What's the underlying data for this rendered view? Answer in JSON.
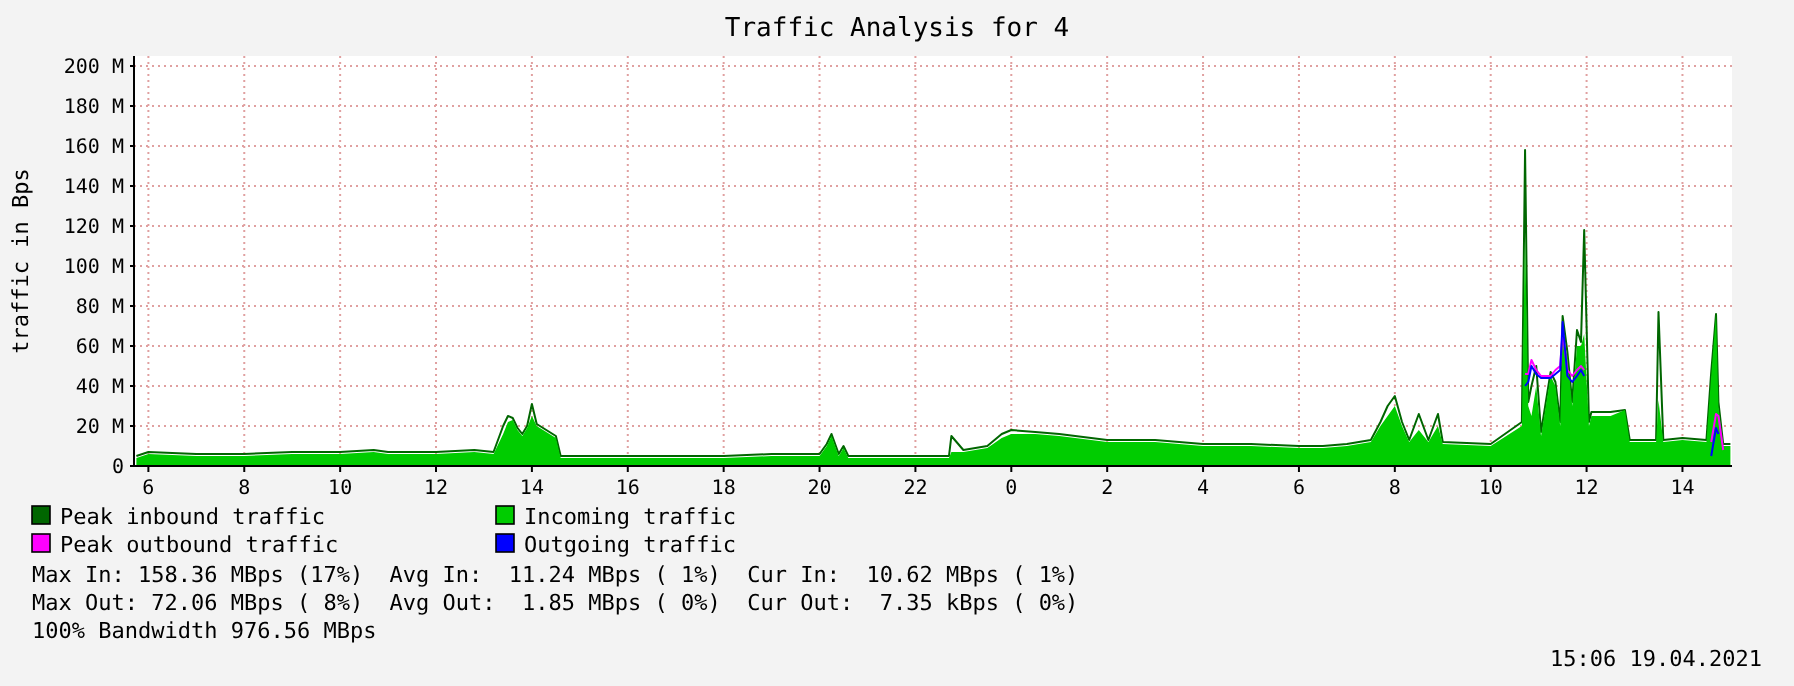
{
  "chart_data": {
    "type": "line",
    "title": "Traffic Analysis for 4",
    "ylabel": "traffic in Bps",
    "x": [
      "2021-04-18T05:45",
      "2021-04-18T06:00",
      "2021-04-18T07:00",
      "2021-04-18T08:00",
      "2021-04-18T09:00",
      "2021-04-18T10:00",
      "2021-04-18T10:42",
      "2021-04-18T11:00",
      "2021-04-18T12:00",
      "2021-04-18T12:48",
      "2021-04-18T13:12",
      "2021-04-18T13:24",
      "2021-04-18T13:30",
      "2021-04-18T13:36",
      "2021-04-18T13:42",
      "2021-04-18T13:48",
      "2021-04-18T13:54",
      "2021-04-18T14:00",
      "2021-04-18T14:06",
      "2021-04-18T14:18",
      "2021-04-18T14:30",
      "2021-04-18T14:36",
      "2021-04-18T15:00",
      "2021-04-18T16:00",
      "2021-04-18T17:00",
      "2021-04-18T18:00",
      "2021-04-18T19:00",
      "2021-04-18T20:00",
      "2021-04-18T20:09",
      "2021-04-18T20:15",
      "2021-04-18T20:24",
      "2021-04-18T20:30",
      "2021-04-18T20:36",
      "2021-04-18T21:00",
      "2021-04-18T22:00",
      "2021-04-18T22:42",
      "2021-04-18T22:45",
      "2021-04-18T23:00",
      "2021-04-18T23:30",
      "2021-04-18T23:48",
      "2021-04-19T00:00",
      "2021-04-19T00:30",
      "2021-04-19T01:00",
      "2021-04-19T02:00",
      "2021-04-19T03:00",
      "2021-04-19T04:00",
      "2021-04-19T05:00",
      "2021-04-19T06:00",
      "2021-04-19T06:30",
      "2021-04-19T07:00",
      "2021-04-19T07:30",
      "2021-04-19T07:42",
      "2021-04-19T07:51",
      "2021-04-19T08:00",
      "2021-04-19T08:09",
      "2021-04-19T08:18",
      "2021-04-19T08:30",
      "2021-04-19T08:42",
      "2021-04-19T08:54",
      "2021-04-19T09:00",
      "2021-04-19T10:00",
      "2021-04-19T10:39",
      "2021-04-19T10:43",
      "2021-04-19T10:47",
      "2021-04-19T10:51",
      "2021-04-19T10:57",
      "2021-04-19T11:03",
      "2021-04-19T11:09",
      "2021-04-19T11:15",
      "2021-04-19T11:21",
      "2021-04-19T11:27",
      "2021-04-19T11:30",
      "2021-04-19T11:36",
      "2021-04-19T11:42",
      "2021-04-19T11:48",
      "2021-04-19T11:53",
      "2021-04-19T11:57",
      "2021-04-19T12:03",
      "2021-04-19T12:06",
      "2021-04-19T12:30",
      "2021-04-19T12:48",
      "2021-04-19T12:54",
      "2021-04-19T13:00",
      "2021-04-19T13:27",
      "2021-04-19T13:30",
      "2021-04-19T13:36",
      "2021-04-19T14:00",
      "2021-04-19T14:30",
      "2021-04-19T14:36",
      "2021-04-19T14:42",
      "2021-04-19T14:45",
      "2021-04-19T14:51",
      "2021-04-19T15:00"
    ],
    "series": [
      {
        "name": "Peak inbound traffic",
        "type": "line",
        "color": "#006600",
        "values": [
          5,
          7,
          6,
          6,
          7,
          7,
          8,
          7,
          7,
          8,
          7,
          20,
          25,
          24,
          19,
          16,
          20,
          31,
          21,
          18,
          15,
          5,
          5,
          5,
          5,
          5,
          6,
          6,
          11,
          16,
          6,
          10,
          5,
          5,
          5,
          5,
          15,
          8,
          10,
          16,
          18,
          17,
          16,
          13,
          13,
          11,
          11,
          10,
          10,
          11,
          13,
          22,
          30,
          35,
          22,
          13,
          26,
          13,
          26,
          12,
          11,
          22,
          158,
          32,
          40,
          50,
          17,
          32,
          47,
          42,
          22,
          75,
          57,
          32,
          68,
          62,
          118,
          22,
          27,
          27,
          28,
          13,
          13,
          13,
          77,
          13,
          14,
          13,
          47,
          76,
          32,
          11,
          11
        ]
      },
      {
        "name": "Incoming traffic",
        "type": "area",
        "color": "#00cc00",
        "values": [
          4,
          6,
          5,
          5,
          6,
          6,
          7,
          6,
          6,
          7,
          6,
          16,
          22,
          23,
          18,
          15,
          19,
          25,
          20,
          17,
          14,
          4,
          4,
          4,
          4,
          4,
          5,
          5,
          10,
          15,
          5,
          9,
          4,
          4,
          4,
          4,
          7,
          7,
          9,
          14,
          16,
          16,
          15,
          12,
          12,
          10,
          10,
          9,
          9,
          10,
          12,
          20,
          25,
          30,
          20,
          12,
          18,
          12,
          20,
          11,
          10,
          20,
          115,
          30,
          25,
          40,
          15,
          30,
          45,
          40,
          20,
          65,
          55,
          30,
          60,
          60,
          66,
          20,
          25,
          25,
          28,
          12,
          12,
          12,
          33,
          12,
          13,
          12,
          45,
          76,
          30,
          10,
          10
        ]
      },
      {
        "name": "Peak outbound traffic",
        "type": "line",
        "color": "#ff00ff",
        "values": [
          null,
          null,
          null,
          null,
          null,
          null,
          null,
          null,
          null,
          null,
          null,
          null,
          null,
          null,
          null,
          null,
          null,
          null,
          null,
          null,
          null,
          null,
          null,
          null,
          null,
          null,
          null,
          null,
          null,
          null,
          null,
          null,
          null,
          null,
          null,
          null,
          null,
          null,
          null,
          null,
          null,
          null,
          null,
          null,
          null,
          null,
          null,
          null,
          null,
          null,
          null,
          null,
          null,
          null,
          null,
          null,
          null,
          null,
          null,
          null,
          null,
          null,
          46,
          46,
          53,
          48,
          45,
          45,
          45,
          48,
          50,
          67,
          48,
          45,
          48,
          50,
          48,
          null,
          null,
          null,
          null,
          null,
          null,
          null,
          null,
          null,
          null,
          null,
          12,
          26,
          25,
          8,
          null
        ]
      },
      {
        "name": "Outgoing traffic",
        "type": "line",
        "color": "#0000ff",
        "values": [
          null,
          null,
          null,
          null,
          null,
          null,
          null,
          null,
          null,
          null,
          null,
          null,
          null,
          null,
          null,
          null,
          null,
          null,
          null,
          null,
          null,
          null,
          null,
          null,
          null,
          null,
          null,
          null,
          null,
          null,
          null,
          null,
          null,
          null,
          null,
          null,
          null,
          null,
          null,
          null,
          null,
          null,
          null,
          null,
          null,
          null,
          null,
          null,
          null,
          null,
          null,
          null,
          null,
          null,
          null,
          null,
          null,
          null,
          null,
          null,
          null,
          null,
          40,
          42,
          50,
          46,
          44,
          44,
          44,
          46,
          48,
          72,
          45,
          42,
          45,
          48,
          45,
          null,
          null,
          null,
          null,
          null,
          null,
          null,
          null,
          null,
          null,
          null,
          5,
          19,
          16,
          null,
          null
        ]
      }
    ],
    "xlim": [
      "2021-04-18T05:42",
      "2021-04-19T15:02"
    ],
    "xticks": [
      {
        "value": "2021-04-18T06:00",
        "label": "6"
      },
      {
        "value": "2021-04-18T08:00",
        "label": "8"
      },
      {
        "value": "2021-04-18T10:00",
        "label": "10"
      },
      {
        "value": "2021-04-18T12:00",
        "label": "12"
      },
      {
        "value": "2021-04-18T14:00",
        "label": "14"
      },
      {
        "value": "2021-04-18T16:00",
        "label": "16"
      },
      {
        "value": "2021-04-18T18:00",
        "label": "18"
      },
      {
        "value": "2021-04-18T20:00",
        "label": "20"
      },
      {
        "value": "2021-04-18T22:00",
        "label": "22"
      },
      {
        "value": "2021-04-19T00:00",
        "label": "0"
      },
      {
        "value": "2021-04-19T02:00",
        "label": "2"
      },
      {
        "value": "2021-04-19T04:00",
        "label": "4"
      },
      {
        "value": "2021-04-19T06:00",
        "label": "6"
      },
      {
        "value": "2021-04-19T08:00",
        "label": "8"
      },
      {
        "value": "2021-04-19T10:00",
        "label": "10"
      },
      {
        "value": "2021-04-19T12:00",
        "label": "12"
      },
      {
        "value": "2021-04-19T14:00",
        "label": "14"
      }
    ],
    "ylim": [
      0,
      205
    ],
    "yticks": [
      0,
      {
        "value": 20,
        "label": "20 M"
      },
      {
        "value": 40,
        "label": "40 M"
      },
      {
        "value": 60,
        "label": "60 M"
      },
      {
        "value": 80,
        "label": "80 M"
      },
      {
        "value": 100,
        "label": "100 M"
      },
      {
        "value": 120,
        "label": "120 M"
      },
      {
        "value": 140,
        "label": "140 M"
      },
      {
        "value": 160,
        "label": "160 M"
      },
      {
        "value": 180,
        "label": "180 M"
      },
      {
        "value": 200,
        "label": "200 M"
      }
    ],
    "grid": true,
    "legend": "bottom",
    "annotations": [
      "Max In: 158.36 MBps (17%)  Avg In:  11.24 MBps ( 1%)  Cur In:  10.62 MBps ( 1%)",
      "Max Out: 72.06 MBps ( 8%)  Avg Out:  1.85 MBps ( 0%)  Cur Out:  7.35 kBps ( 0%)",
      "100% Bandwidth 976.56 MBps",
      "15:06 19.04.2021"
    ]
  }
}
